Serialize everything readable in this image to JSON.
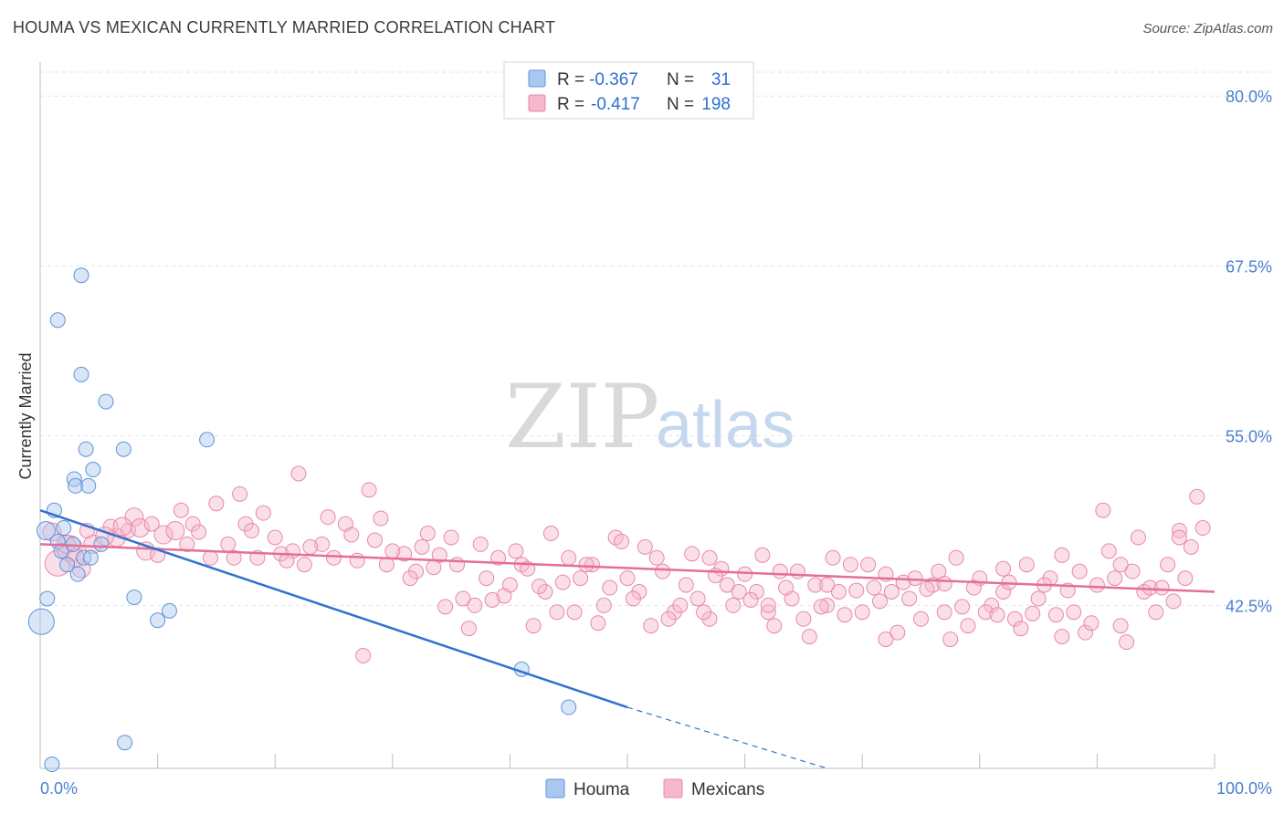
{
  "title": "HOUMA VS MEXICAN CURRENTLY MARRIED CORRELATION CHART",
  "source": "Source: ZipAtlas.com",
  "watermark": {
    "zip": "ZIP",
    "atlas": "atlas"
  },
  "colors": {
    "houma_fill": "#a9c8f0",
    "houma_stroke": "#5f93d8",
    "houma_line": "#2d72d2",
    "mex_fill": "#f6b8cc",
    "mex_stroke": "#e888a8",
    "mex_line": "#e56e98",
    "tick_text": "#4a7fd4",
    "grid": "#e4e4e4"
  },
  "legend": {
    "houma": {
      "r_label": "R =",
      "r_value": "-0.367",
      "n_label": "N =",
      "n_value": "31"
    },
    "mex": {
      "r_label": "R =",
      "r_value": "-0.417",
      "n_label": "N =",
      "n_value": "198"
    }
  },
  "bottom_legend": {
    "houma": "Houma",
    "mex": "Mexicans"
  },
  "chart_data": {
    "type": "scatter",
    "xlabel": "",
    "ylabel": "Currently Married",
    "xlim": [
      0,
      100
    ],
    "ylim": [
      30.5,
      82.5
    ],
    "x_tick_labels": [
      "0.0%",
      "100.0%"
    ],
    "y_ticks": [
      {
        "value": 80.0,
        "label": "80.0%"
      },
      {
        "value": 67.5,
        "label": "67.5%"
      },
      {
        "value": 55.0,
        "label": "55.0%"
      },
      {
        "value": 42.5,
        "label": "42.5%"
      }
    ],
    "grid": true,
    "legend_position": "top-center",
    "series": [
      {
        "name": "Houma",
        "trend": {
          "x": [
            0,
            50
          ],
          "y": [
            49.5,
            35.0
          ],
          "dashed_to": [
            67,
            30.5
          ]
        },
        "points": [
          [
            0.1,
            41.3,
            14
          ],
          [
            1.2,
            49.5,
            8
          ],
          [
            0.6,
            43.0,
            8
          ],
          [
            1.0,
            30.8,
            8
          ],
          [
            0.5,
            48.0,
            10
          ],
          [
            1.5,
            47.2,
            8
          ],
          [
            1.8,
            46.5,
            8
          ],
          [
            2.0,
            48.2,
            8
          ],
          [
            2.3,
            45.5,
            8
          ],
          [
            2.8,
            47.0,
            8
          ],
          [
            3.2,
            44.8,
            8
          ],
          [
            3.7,
            46.0,
            8
          ],
          [
            4.3,
            46.0,
            8
          ],
          [
            5.2,
            47.0,
            8
          ],
          [
            2.9,
            51.8,
            8
          ],
          [
            3.0,
            51.3,
            8
          ],
          [
            4.1,
            51.3,
            8
          ],
          [
            4.5,
            52.5,
            8
          ],
          [
            3.9,
            54.0,
            8
          ],
          [
            7.1,
            54.0,
            8
          ],
          [
            7.2,
            32.4,
            8
          ],
          [
            1.5,
            63.5,
            8
          ],
          [
            3.5,
            66.8,
            8
          ],
          [
            3.5,
            59.5,
            8
          ],
          [
            5.6,
            57.5,
            8
          ],
          [
            8.0,
            43.1,
            8
          ],
          [
            10.0,
            41.4,
            8
          ],
          [
            11.0,
            42.1,
            8
          ],
          [
            14.2,
            54.7,
            8
          ],
          [
            41.0,
            37.8,
            8
          ],
          [
            45.0,
            35.0,
            8
          ]
        ]
      },
      {
        "name": "Mexicans",
        "trend": {
          "x": [
            0,
            100
          ],
          "y": [
            47.0,
            43.5
          ]
        },
        "points": [
          [
            1.5,
            45.6,
            14
          ],
          [
            3.5,
            45.2,
            10
          ],
          [
            2.5,
            46.7,
            14
          ],
          [
            1.0,
            47.9,
            10
          ],
          [
            4.5,
            47.0,
            10
          ],
          [
            6.5,
            47.5,
            10
          ],
          [
            7.5,
            48.0,
            8
          ],
          [
            8.0,
            49.0,
            10
          ],
          [
            9.0,
            46.5,
            10
          ],
          [
            10.5,
            47.7,
            10
          ],
          [
            12.0,
            49.5,
            8
          ],
          [
            13.0,
            48.5,
            8
          ],
          [
            14.5,
            46.0,
            8
          ],
          [
            16.0,
            47.0,
            8
          ],
          [
            17.5,
            48.5,
            8
          ],
          [
            18.5,
            46.0,
            8
          ],
          [
            20.0,
            47.5,
            8
          ],
          [
            21.5,
            46.5,
            8
          ],
          [
            22.5,
            45.5,
            8
          ],
          [
            24.0,
            47.0,
            8
          ],
          [
            25.0,
            46.0,
            8
          ],
          [
            26.0,
            48.5,
            8
          ],
          [
            27.0,
            45.8,
            8
          ],
          [
            28.5,
            47.3,
            8
          ],
          [
            29.5,
            45.5,
            8
          ],
          [
            31.0,
            46.3,
            8
          ],
          [
            32.0,
            45.0,
            8
          ],
          [
            33.0,
            47.8,
            8
          ],
          [
            34.0,
            46.2,
            8
          ],
          [
            35.5,
            45.5,
            8
          ],
          [
            36.0,
            43.0,
            8
          ],
          [
            37.0,
            42.5,
            8
          ],
          [
            38.0,
            44.5,
            8
          ],
          [
            39.0,
            46.0,
            8
          ],
          [
            40.0,
            44.0,
            8
          ],
          [
            41.0,
            45.5,
            8
          ],
          [
            42.0,
            41.0,
            8
          ],
          [
            43.0,
            43.5,
            8
          ],
          [
            44.0,
            42.0,
            8
          ],
          [
            45.0,
            46.0,
            8
          ],
          [
            46.0,
            44.5,
            8
          ],
          [
            47.0,
            45.5,
            8
          ],
          [
            48.0,
            42.5,
            8
          ],
          [
            49.0,
            47.5,
            8
          ],
          [
            50.0,
            44.5,
            8
          ],
          [
            51.0,
            43.5,
            8
          ],
          [
            52.0,
            41.0,
            8
          ],
          [
            53.0,
            45.0,
            8
          ],
          [
            54.0,
            42.0,
            8
          ],
          [
            55.0,
            44.0,
            8
          ],
          [
            56.0,
            43.0,
            8
          ],
          [
            57.0,
            41.5,
            8
          ],
          [
            58.0,
            45.2,
            8
          ],
          [
            59.0,
            42.5,
            8
          ],
          [
            60.0,
            44.8,
            8
          ],
          [
            61.0,
            43.5,
            8
          ],
          [
            62.0,
            42.0,
            8
          ],
          [
            63.0,
            45.0,
            8
          ],
          [
            64.0,
            43.0,
            8
          ],
          [
            65.0,
            41.5,
            8
          ],
          [
            66.0,
            44.0,
            8
          ],
          [
            67.0,
            42.5,
            8
          ],
          [
            68.0,
            43.5,
            8
          ],
          [
            69.0,
            45.5,
            8
          ],
          [
            70.0,
            42.0,
            8
          ],
          [
            71.0,
            43.8,
            8
          ],
          [
            72.0,
            44.8,
            8
          ],
          [
            73.0,
            40.5,
            8
          ],
          [
            74.0,
            43.0,
            8
          ],
          [
            75.0,
            41.5,
            8
          ],
          [
            76.0,
            44.0,
            8
          ],
          [
            77.0,
            42.0,
            8
          ],
          [
            78.0,
            46.0,
            8
          ],
          [
            79.0,
            41.0,
            8
          ],
          [
            80.0,
            44.5,
            8
          ],
          [
            81.0,
            42.5,
            8
          ],
          [
            82.0,
            43.5,
            8
          ],
          [
            83.0,
            41.5,
            8
          ],
          [
            84.0,
            45.5,
            8
          ],
          [
            85.0,
            43.0,
            8
          ],
          [
            86.0,
            44.5,
            8
          ],
          [
            87.0,
            46.2,
            8
          ],
          [
            88.0,
            42.0,
            8
          ],
          [
            89.0,
            40.5,
            8
          ],
          [
            90.0,
            44.0,
            8
          ],
          [
            91.0,
            46.5,
            8
          ],
          [
            92.0,
            41.0,
            8
          ],
          [
            93.0,
            45.0,
            8
          ],
          [
            94.0,
            43.5,
            8
          ],
          [
            95.0,
            42.0,
            8
          ],
          [
            96.0,
            45.5,
            8
          ],
          [
            97.0,
            48.0,
            8
          ],
          [
            98.0,
            46.8,
            8
          ],
          [
            99.0,
            48.2,
            8
          ],
          [
            98.5,
            50.5,
            8
          ],
          [
            15.0,
            50.0,
            8
          ],
          [
            17.0,
            50.7,
            8
          ],
          [
            18.0,
            48.0,
            8
          ],
          [
            20.5,
            46.3,
            8
          ],
          [
            22.0,
            52.2,
            8
          ],
          [
            28.0,
            51.0,
            8
          ],
          [
            30.0,
            46.5,
            8
          ],
          [
            32.5,
            46.8,
            8
          ],
          [
            35.0,
            47.5,
            8
          ],
          [
            37.5,
            47.0,
            8
          ],
          [
            40.5,
            46.5,
            8
          ],
          [
            43.5,
            47.8,
            8
          ],
          [
            46.5,
            45.5,
            8
          ],
          [
            49.5,
            47.2,
            8
          ],
          [
            52.5,
            46.0,
            8
          ],
          [
            55.5,
            46.3,
            8
          ],
          [
            58.5,
            44.0,
            8
          ],
          [
            61.5,
            46.2,
            8
          ],
          [
            64.5,
            45.0,
            8
          ],
          [
            67.5,
            46.0,
            8
          ],
          [
            70.5,
            45.5,
            8
          ],
          [
            73.5,
            44.2,
            8
          ],
          [
            76.5,
            45.0,
            8
          ],
          [
            79.5,
            43.8,
            8
          ],
          [
            82.5,
            44.2,
            8
          ],
          [
            85.5,
            44.0,
            8
          ],
          [
            88.5,
            45.0,
            8
          ],
          [
            91.5,
            44.5,
            8
          ],
          [
            94.5,
            43.8,
            8
          ],
          [
            97.5,
            44.5,
            8
          ],
          [
            8.5,
            48.2,
            10
          ],
          [
            11.5,
            48.0,
            10
          ],
          [
            24.5,
            49.0,
            8
          ],
          [
            33.5,
            45.3,
            8
          ],
          [
            39.5,
            43.2,
            8
          ],
          [
            44.5,
            44.2,
            8
          ],
          [
            48.5,
            43.8,
            8
          ],
          [
            53.5,
            41.5,
            8
          ],
          [
            56.5,
            42.0,
            8
          ],
          [
            59.5,
            43.5,
            8
          ],
          [
            62.5,
            41.0,
            8
          ],
          [
            65.5,
            40.2,
            8
          ],
          [
            68.5,
            41.8,
            8
          ],
          [
            71.5,
            42.8,
            8
          ],
          [
            74.5,
            44.5,
            8
          ],
          [
            77.5,
            40.0,
            8
          ],
          [
            80.5,
            42.0,
            8
          ],
          [
            83.5,
            40.8,
            8
          ],
          [
            86.5,
            41.8,
            8
          ],
          [
            89.5,
            41.2,
            8
          ],
          [
            92.5,
            39.8,
            8
          ],
          [
            95.5,
            43.8,
            8
          ],
          [
            96.5,
            42.8,
            8
          ],
          [
            90.5,
            49.5,
            8
          ],
          [
            93.5,
            47.5,
            8
          ],
          [
            6.0,
            48.3,
            8
          ],
          [
            9.5,
            48.5,
            8
          ],
          [
            13.5,
            47.9,
            8
          ],
          [
            16.5,
            46.0,
            8
          ],
          [
            19.0,
            49.3,
            8
          ],
          [
            23.0,
            46.8,
            8
          ],
          [
            26.5,
            47.7,
            8
          ],
          [
            29.0,
            48.9,
            8
          ],
          [
            31.5,
            44.5,
            8
          ],
          [
            34.5,
            42.4,
            8
          ],
          [
            38.5,
            42.9,
            8
          ],
          [
            42.5,
            43.9,
            8
          ],
          [
            45.5,
            42.0,
            8
          ],
          [
            47.5,
            41.2,
            8
          ],
          [
            50.5,
            43.0,
            8
          ],
          [
            54.5,
            42.5,
            8
          ],
          [
            57.5,
            44.7,
            8
          ],
          [
            60.5,
            42.9,
            8
          ],
          [
            63.5,
            43.8,
            8
          ],
          [
            66.5,
            42.4,
            8
          ],
          [
            69.5,
            43.6,
            8
          ],
          [
            72.5,
            43.5,
            8
          ],
          [
            75.5,
            43.7,
            8
          ],
          [
            78.5,
            42.4,
            8
          ],
          [
            81.5,
            41.8,
            8
          ],
          [
            84.5,
            41.9,
            8
          ],
          [
            87.5,
            43.6,
            8
          ],
          [
            10.0,
            46.2,
            8
          ],
          [
            21.0,
            45.8,
            8
          ],
          [
            27.5,
            38.8,
            8
          ],
          [
            36.5,
            40.8,
            8
          ],
          [
            41.5,
            45.2,
            8
          ],
          [
            51.5,
            46.8,
            8
          ],
          [
            57.0,
            46.0,
            8
          ],
          [
            62.0,
            42.5,
            8
          ],
          [
            67.0,
            44.0,
            8
          ],
          [
            72.0,
            40.0,
            8
          ],
          [
            77.0,
            44.1,
            8
          ],
          [
            82.0,
            45.2,
            8
          ],
          [
            87.0,
            40.2,
            8
          ],
          [
            92.0,
            45.5,
            8
          ],
          [
            97.0,
            47.5,
            8
          ],
          [
            12.5,
            47.0,
            8
          ],
          [
            2.2,
            47.0,
            10
          ],
          [
            5.5,
            47.6,
            10
          ],
          [
            3.0,
            46.0,
            10
          ],
          [
            4.0,
            48.0,
            8
          ],
          [
            7.0,
            48.3,
            10
          ]
        ]
      }
    ]
  }
}
